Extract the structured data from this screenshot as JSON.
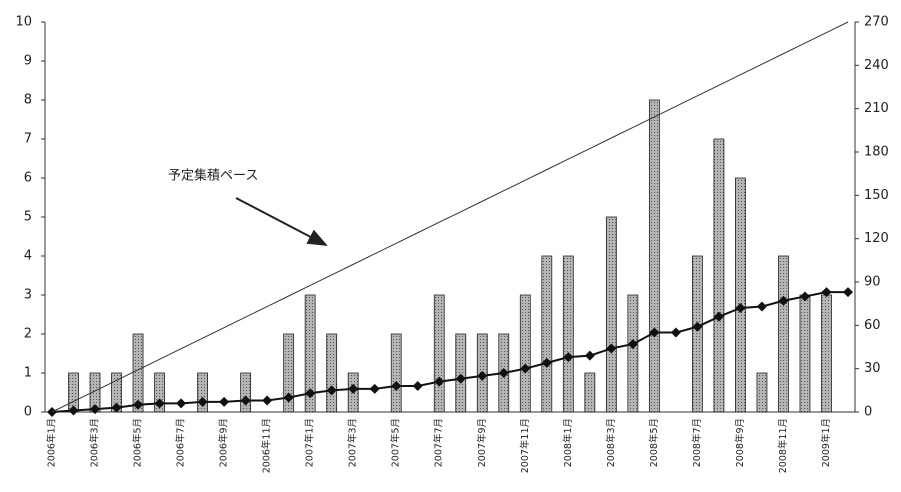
{
  "chart_data": {
    "type": "bar-line",
    "categories": [
      "2006年1月",
      null,
      "2006年3月",
      null,
      "2006年5月",
      null,
      "2006年7月",
      null,
      "2006年9月",
      null,
      "2006年11月",
      null,
      "2007年1月",
      null,
      "2007年3月",
      null,
      "2007年5月",
      null,
      "2007年7月",
      null,
      "2007年9月",
      null,
      "2007年11月",
      null,
      "2008年1月",
      null,
      "2008年3月",
      null,
      "2008年5月",
      null,
      "2008年7月",
      null,
      "2008年9月",
      null,
      "2008年11月",
      null,
      "2009年1月",
      null
    ],
    "series": [
      {
        "kind": "bar",
        "axis": "y",
        "color": "#9a9a9a",
        "values": [
          0,
          1,
          1,
          1,
          2,
          1,
          0,
          1,
          0,
          1,
          0,
          2,
          3,
          2,
          1,
          0,
          2,
          0,
          3,
          2,
          2,
          2,
          3,
          4,
          4,
          1,
          5,
          3,
          8,
          0,
          4,
          7,
          6,
          1,
          4,
          3,
          3,
          0
        ]
      },
      {
        "kind": "line-marker",
        "axis": "y2",
        "color": "#111111",
        "values": [
          0,
          1,
          2,
          3,
          5,
          6,
          6,
          7,
          7,
          8,
          8,
          10,
          13,
          15,
          16,
          16,
          18,
          18,
          21,
          23,
          25,
          27,
          30,
          34,
          38,
          39,
          44,
          47,
          55,
          55,
          59,
          66,
          72,
          73,
          77,
          80,
          83,
          83
        ]
      },
      {
        "kind": "line",
        "axis": "y2",
        "color": "#333333",
        "values": [
          0,
          7.3,
          14.6,
          21.9,
          29.2,
          36.5,
          43.8,
          51.1,
          58.4,
          65.7,
          73,
          80.3,
          87.6,
          94.9,
          102.2,
          109.5,
          116.8,
          124.1,
          131.4,
          138.6,
          145.9,
          153.2,
          160.5,
          167.8,
          175.1,
          182.4,
          189.7,
          197,
          204.3,
          211.6,
          218.9,
          226.2,
          233.5,
          240.8,
          248.1,
          255.4,
          262.7,
          270
        ]
      }
    ],
    "annotation": "予定集積ペース",
    "ylim": [
      0,
      10
    ],
    "yticks": [
      0,
      1,
      2,
      3,
      4,
      5,
      6,
      7,
      8,
      9,
      10
    ],
    "y2lim": [
      0,
      270
    ],
    "y2ticks": [
      0,
      30,
      60,
      90,
      120,
      150,
      180,
      210,
      240,
      270
    ]
  }
}
